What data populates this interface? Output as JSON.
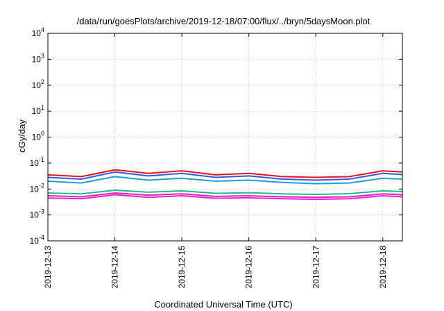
{
  "chart_data": {
    "type": "line",
    "title": "/data/run/goesPlots/archive/2019-12-18/07:00/flux/../bryn/5daysMoon.plot",
    "xlabel": "Coordinated Universal Time (UTC)",
    "ylabel": "cGy/day",
    "y_scale": "log",
    "ylim": [
      0.0001,
      10000
    ],
    "y_ticks": [
      {
        "base": "10",
        "exp": "-4",
        "value": 0.0001
      },
      {
        "base": "10",
        "exp": "-3",
        "value": 0.001
      },
      {
        "base": "10",
        "exp": "-2",
        "value": 0.01
      },
      {
        "base": "10",
        "exp": "-1",
        "value": 0.1
      },
      {
        "base": "10",
        "exp": "0",
        "value": 1
      },
      {
        "base": "10",
        "exp": "1",
        "value": 10
      },
      {
        "base": "10",
        "exp": "2",
        "value": 100
      },
      {
        "base": "10",
        "exp": "3",
        "value": 1000
      },
      {
        "base": "10",
        "exp": "4",
        "value": 10000
      }
    ],
    "x_ticks": [
      "2019-12-13",
      "2019-12-14",
      "2019-12-15",
      "2019-12-16",
      "2019-12-17",
      "2019-12-18"
    ],
    "xlim": [
      "2019-12-13T00:00",
      "2019-12-18T07:00"
    ],
    "grid": true,
    "legend": "none",
    "series": [
      {
        "color": "#e8141b",
        "x": [
          "2019-12-13T00:00",
          "2019-12-13T12:00",
          "2019-12-14T00:00",
          "2019-12-14T12:00",
          "2019-12-15T00:00",
          "2019-12-15T12:00",
          "2019-12-16T00:00",
          "2019-12-16T12:00",
          "2019-12-17T00:00",
          "2019-12-17T12:00",
          "2019-12-18T00:00",
          "2019-12-18T07:00"
        ],
        "values": [
          0.035,
          0.03,
          0.055,
          0.04,
          0.05,
          0.035,
          0.04,
          0.03,
          0.028,
          0.03,
          0.05,
          0.045
        ]
      },
      {
        "color": "#3b55e6",
        "x": [
          "2019-12-13T00:00",
          "2019-12-13T12:00",
          "2019-12-14T00:00",
          "2019-12-14T12:00",
          "2019-12-15T00:00",
          "2019-12-15T12:00",
          "2019-12-16T00:00",
          "2019-12-16T12:00",
          "2019-12-17T00:00",
          "2019-12-17T12:00",
          "2019-12-18T00:00",
          "2019-12-18T07:00"
        ],
        "values": [
          0.028,
          0.024,
          0.045,
          0.032,
          0.04,
          0.028,
          0.032,
          0.024,
          0.022,
          0.024,
          0.04,
          0.036
        ]
      },
      {
        "color": "#1a9fd6",
        "x": [
          "2019-12-13T00:00",
          "2019-12-13T12:00",
          "2019-12-14T00:00",
          "2019-12-14T12:00",
          "2019-12-15T00:00",
          "2019-12-15T12:00",
          "2019-12-16T00:00",
          "2019-12-16T12:00",
          "2019-12-17T00:00",
          "2019-12-17T12:00",
          "2019-12-18T00:00",
          "2019-12-18T07:00"
        ],
        "values": [
          0.02,
          0.017,
          0.03,
          0.022,
          0.026,
          0.02,
          0.022,
          0.018,
          0.016,
          0.017,
          0.026,
          0.024
        ]
      },
      {
        "color": "#19c08a",
        "x": [
          "2019-12-13T00:00",
          "2019-12-13T12:00",
          "2019-12-14T00:00",
          "2019-12-14T12:00",
          "2019-12-15T00:00",
          "2019-12-15T12:00",
          "2019-12-16T00:00",
          "2019-12-16T12:00",
          "2019-12-17T00:00",
          "2019-12-17T12:00",
          "2019-12-18T00:00",
          "2019-12-18T07:00"
        ],
        "values": [
          0.007,
          0.0065,
          0.009,
          0.0075,
          0.0085,
          0.0068,
          0.0072,
          0.0065,
          0.0062,
          0.0066,
          0.0085,
          0.008
        ]
      },
      {
        "color": "#f11ab3",
        "x": [
          "2019-12-13T00:00",
          "2019-12-13T12:00",
          "2019-12-14T00:00",
          "2019-12-14T12:00",
          "2019-12-15T00:00",
          "2019-12-15T12:00",
          "2019-12-16T00:00",
          "2019-12-16T12:00",
          "2019-12-17T00:00",
          "2019-12-17T12:00",
          "2019-12-18T00:00",
          "2019-12-18T07:00"
        ],
        "values": [
          0.0055,
          0.005,
          0.007,
          0.0058,
          0.0065,
          0.0052,
          0.0055,
          0.005,
          0.0048,
          0.005,
          0.0065,
          0.006
        ]
      },
      {
        "color": "#e021e0",
        "x": [
          "2019-12-13T00:00",
          "2019-12-13T12:00",
          "2019-12-14T00:00",
          "2019-12-14T12:00",
          "2019-12-15T00:00",
          "2019-12-15T12:00",
          "2019-12-16T00:00",
          "2019-12-16T12:00",
          "2019-12-17T00:00",
          "2019-12-17T12:00",
          "2019-12-18T00:00",
          "2019-12-18T07:00"
        ],
        "values": [
          0.0045,
          0.0042,
          0.006,
          0.0048,
          0.0055,
          0.0044,
          0.0046,
          0.0042,
          0.004,
          0.0042,
          0.0055,
          0.005
        ]
      }
    ]
  }
}
